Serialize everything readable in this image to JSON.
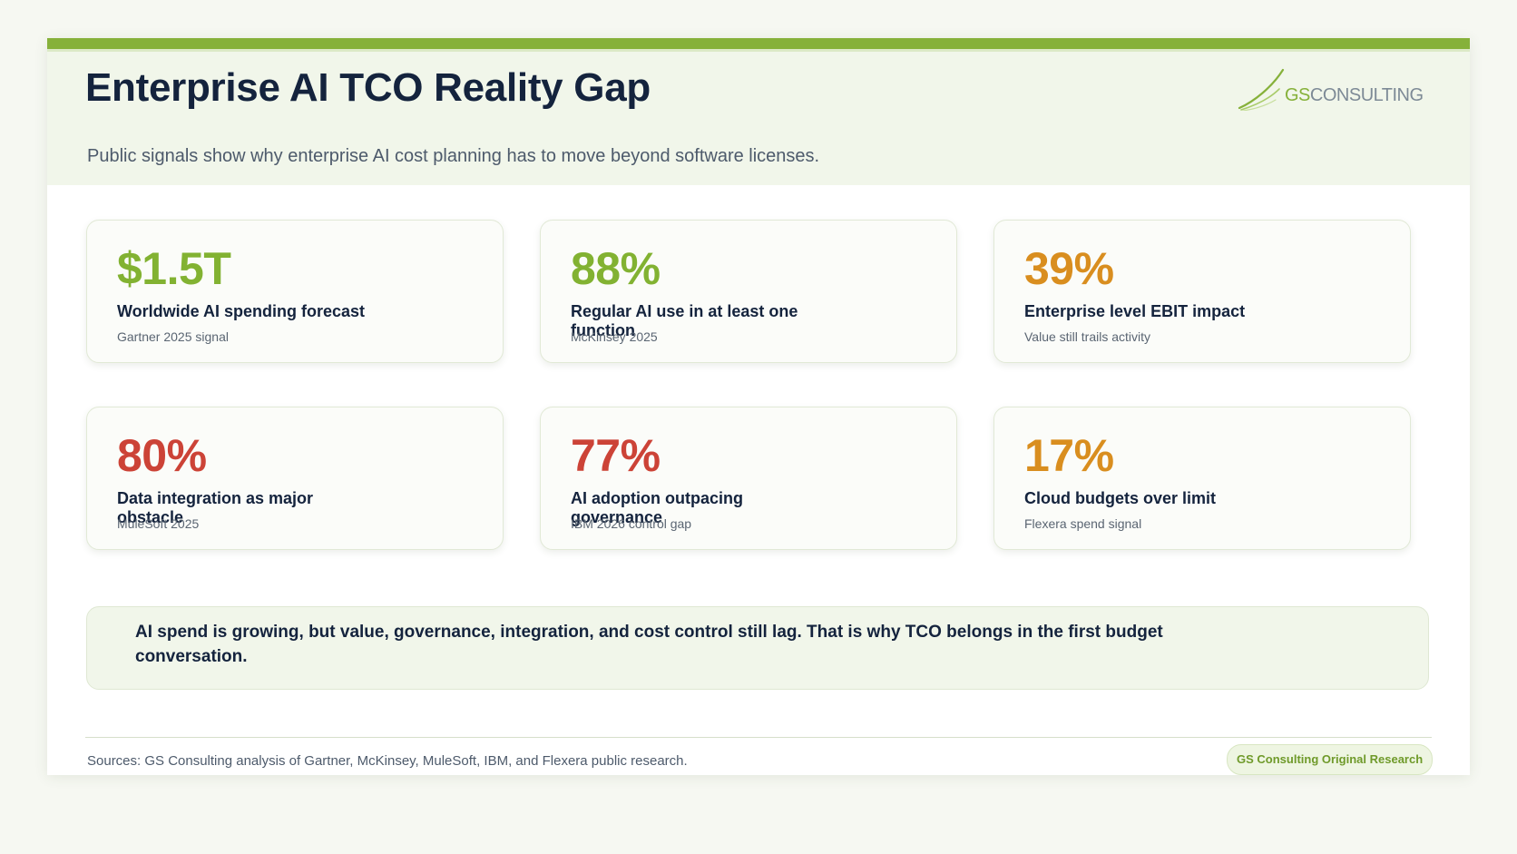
{
  "header": {
    "title": "Enterprise AI TCO Reality Gap",
    "subtitle": "Public signals show why enterprise AI cost planning has to move beyond software licenses."
  },
  "logo": {
    "brand_gs": "GS",
    "brand_rest": "CONSULTING",
    "icon": "swoosh-logo-icon"
  },
  "cards": [
    {
      "value": "$1.5T",
      "label": "Worldwide AI spending forecast",
      "source": "Gartner 2025 signal",
      "color": "#82b232"
    },
    {
      "value": "88%",
      "label": "Regular AI use in at least one function",
      "source": "McKinsey 2025",
      "color": "#82b232"
    },
    {
      "value": "39%",
      "label": "Enterprise level EBIT impact",
      "source": "Value still trails activity",
      "color": "#d98e1f"
    },
    {
      "value": "80%",
      "label": "Data integration as major obstacle",
      "source": "MuleSoft 2025",
      "color": "#cc4337"
    },
    {
      "value": "77%",
      "label": "AI adoption outpacing governance",
      "source": "IBM 2026 control gap",
      "color": "#cc4337"
    },
    {
      "value": "17%",
      "label": "Cloud budgets over limit",
      "source": "Flexera spend signal",
      "color": "#d98e1f"
    }
  ],
  "callout": {
    "text": "AI spend is growing, but value, governance, integration, and cost control still lag. That is why TCO belongs in the first budget conversation."
  },
  "footer": {
    "sources": "Sources: GS Consulting analysis of Gartner, McKinsey, MuleSoft, IBM, and Flexera public research.",
    "badge": "GS Consulting Original Research"
  },
  "colors": {
    "accent_green": "#86b13a",
    "navy": "#14233d",
    "orange": "#d98e1f",
    "red": "#cc4337"
  }
}
